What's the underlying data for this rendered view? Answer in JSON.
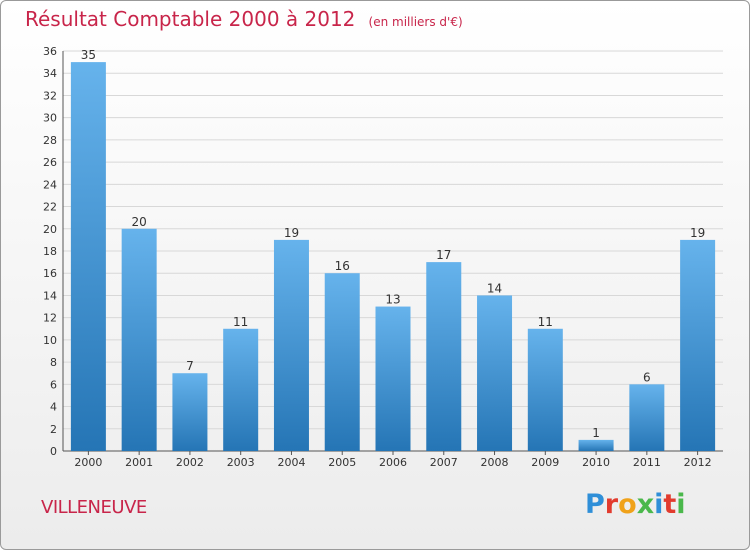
{
  "header": {
    "title": "Résultat Comptable 2000 à 2012",
    "subtitle": "(en milliers d'€)"
  },
  "footer": {
    "city": "VILLENEUVE",
    "logo_text": "Proxiti",
    "logo_colors": [
      "#2f8fd8",
      "#e23b2e",
      "#f0a21a",
      "#4ab84b",
      "#2f8fd8",
      "#e23b2e",
      "#4ab84b"
    ]
  },
  "colors": {
    "bar_light": "#66b3ec",
    "bar_dark": "#2575b5",
    "title": "#c8254a",
    "grid": "#d8d8d8"
  },
  "chart_data": {
    "type": "bar",
    "categories": [
      "2000",
      "2001",
      "2002",
      "2003",
      "2004",
      "2005",
      "2006",
      "2007",
      "2008",
      "2009",
      "2010",
      "2011",
      "2012"
    ],
    "values": [
      35,
      20,
      7,
      11,
      19,
      16,
      13,
      17,
      14,
      11,
      1,
      6,
      19
    ],
    "ylim": [
      0,
      36
    ],
    "ytick_step": 2,
    "grid": true
  }
}
